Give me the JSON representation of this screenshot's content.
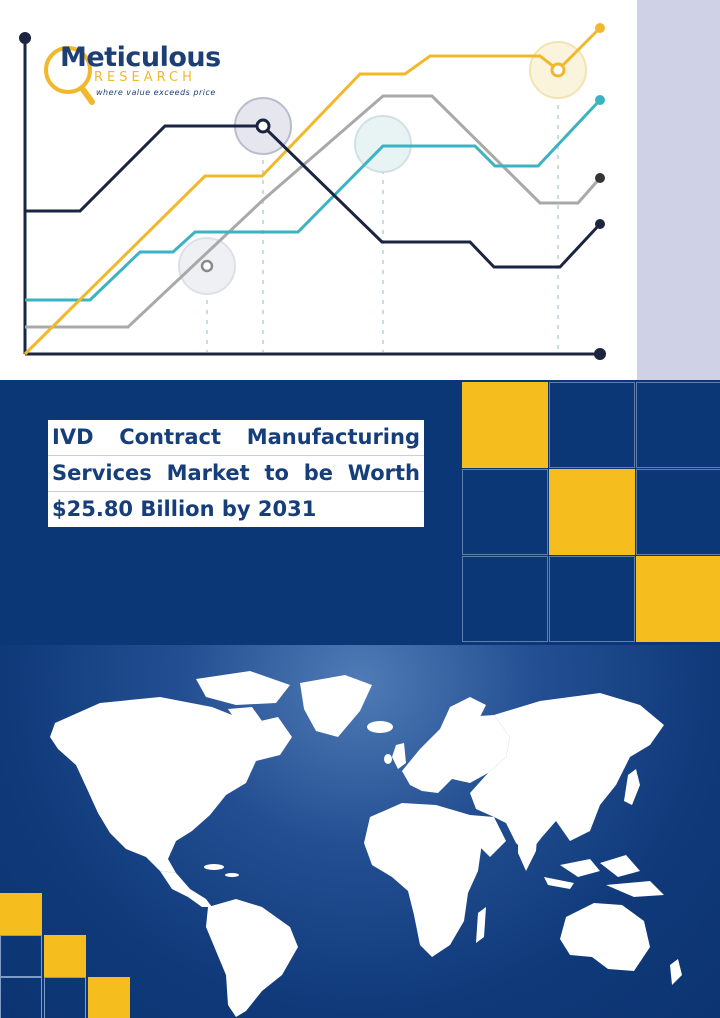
{
  "brand": {
    "name": "Meticulous",
    "sub": "RESEARCH",
    "tagline": "where value exceeds price"
  },
  "headline": {
    "lines": [
      "IVD Contract Manufacturing",
      "Services Market to be Worth",
      "$25.80 Billion by 2031"
    ]
  },
  "colors": {
    "navy": "#0c3777",
    "yellow": "#f6bd1f",
    "teal": "#3bb3c3",
    "gray": "#a9a9a9",
    "dark": "#1b2440",
    "panel": "#cfd2e6"
  },
  "icons": [
    "magnifier-logo-icon",
    "world-map-illustration",
    "decorative-line-graph"
  ]
}
